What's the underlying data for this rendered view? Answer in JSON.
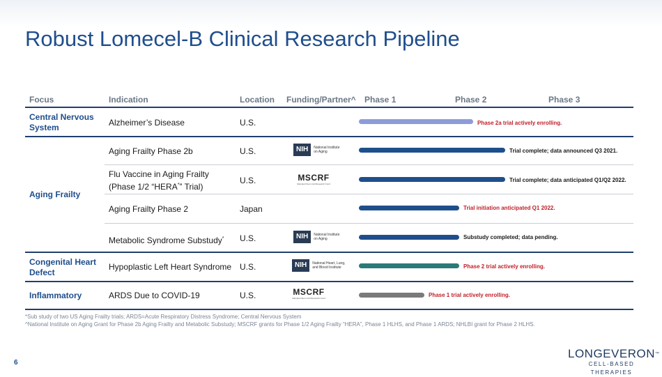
{
  "title": "Robust Lomecel-B Clinical Research Pipeline",
  "headers": {
    "focus": "Focus",
    "indication": "Indication",
    "location": "Location",
    "funding": "Funding/Partner^",
    "phase1": "Phase 1",
    "phase2": "Phase 2",
    "phase3": "Phase 3"
  },
  "focus_areas": {
    "cns": "Central Nervous System",
    "aging": "Aging Frailty",
    "chd": "Congenital Heart Defect",
    "inflammatory": "Inflammatory"
  },
  "rows": [
    {
      "indication": "Alzheimer’s Disease",
      "location": "U.S.",
      "partner": "",
      "status": "Phase 2a trial actively enrolling.",
      "bar_color": "#8d9bd9",
      "status_color": "#c0202a",
      "progress_phases": 1.25
    },
    {
      "indication": "Aging Frailty Phase 2b",
      "location": "U.S.",
      "partner": "NIH",
      "status": "Trial complete; data announced Q3 2021.",
      "bar_color": "#1f4e8c",
      "status_color": "#1a1a1a",
      "progress_phases": 1.6
    },
    {
      "indication": "Flu Vaccine in Aging Frailty",
      "indication_line2": "(Phase 1/2 “HERA” Trial)",
      "hera_mark": "*",
      "location": "U.S.",
      "partner": "MSCRF",
      "status": "Trial complete; data anticipated Q1/Q2 2022.",
      "bar_color": "#1f4e8c",
      "status_color": "#1a1a1a",
      "progress_phases": 1.6
    },
    {
      "indication": "Aging Frailty Phase 2",
      "location": "Japan",
      "partner": "",
      "status": "Trial initiation anticipated Q1 2022.",
      "bar_color": "#1f4e8c",
      "status_color": "#c0202a",
      "progress_phases": 1.1
    },
    {
      "indication": "Metabolic Syndrome Substudy",
      "indication_mark": "*",
      "location": "U.S.",
      "partner": "NIH",
      "status": "Substudy completed; data pending.",
      "bar_color": "#1f4e8c",
      "status_color": "#1a1a1a",
      "progress_phases": 1.1
    },
    {
      "indication": "Hypoplastic Left Heart Syndrome",
      "location": "U.S.",
      "partner": "NIH",
      "status": "Phase 2 trial actively enrolling.",
      "bar_color": "#2a7a78",
      "status_color": "#c0202a",
      "progress_phases": 1.1
    },
    {
      "indication": "ARDS Due to COVID-19",
      "location": "U.S.",
      "partner": "MSCRF",
      "status": "Phase 1 trial actively enrolling.",
      "bar_color": "#7a7a7a",
      "status_color": "#c0202a",
      "progress_phases": 0.72
    }
  ],
  "logos": {
    "nih_abbr": "NIH",
    "nih_aging": "National Institute\non Aging",
    "nih_heart": "National Heart, Lung,\nand Blood Institute",
    "mscrf_name": "MSCRF",
    "mscrf_full": "Maryland Stem Cell Research Fund"
  },
  "footnotes": [
    "*Sub study of two US Aging Frailty trials; ARDS=Acute Respiratory Distress Syndrome; Central Nervous System",
    "^National Institute on Aging Grant for Phase 2b Aging Frailty and Metabolic Substudy; MSCRF grants for Phase 1/2 Aging Frailty “HERA”, Phase 1 HLHS, and Phase 1 ARDS; NHLBI grant for Phase 2 HLHS."
  ],
  "page_number": "6",
  "brand": {
    "name": "LONGEVERON",
    "tm": "™",
    "tagline": "CELL-BASED THERAPIES"
  },
  "colors": {
    "title_blue": "#1f4e8c",
    "status_red": "#c0202a"
  }
}
